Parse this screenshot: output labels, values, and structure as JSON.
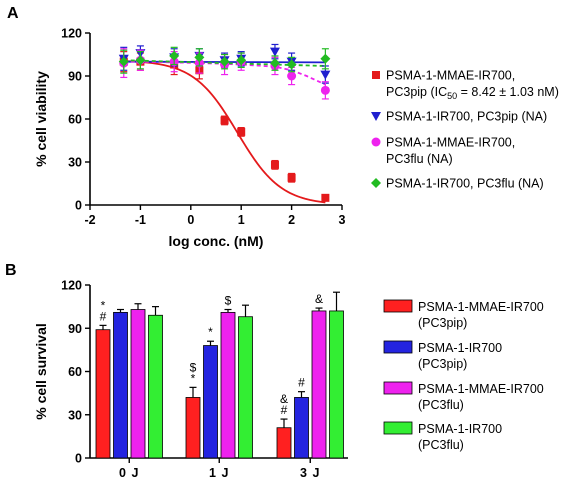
{
  "chart_data": [
    {
      "panel": "A",
      "type": "scatter",
      "xlabel": "log conc. (nM)",
      "ylabel": "% cell viability",
      "xlim": [
        -2,
        3
      ],
      "ylim": [
        0,
        120
      ],
      "xticks": [
        "-2",
        "-1",
        "0",
        "1",
        "2",
        "3"
      ],
      "yticks": [
        "0",
        "30",
        "60",
        "90",
        "120"
      ],
      "series": [
        {
          "name": "PSMA-1-MMAE-IR700, PC3pip (IC50 = 8.42 ± 1.03 nM)",
          "legend_line1": "PSMA-1-MMAE-IR700,",
          "legend_line2_pre": "PC3pip (IC",
          "legend_sub": "50",
          "legend_line2_post": " = 8.42 ± 1.03 nM)",
          "color": "#e41a1c",
          "marker": "square",
          "line": "solid",
          "x": [
            -1.33,
            -1.0,
            -0.33,
            0.17,
            0.67,
            1.0,
            1.67,
            2.0,
            2.67
          ],
          "y": [
            100,
            100,
            98,
            94,
            59,
            51,
            28,
            19,
            5
          ],
          "err": [
            7,
            6,
            7,
            6,
            3,
            3,
            3,
            3,
            2
          ],
          "fit": {
            "top": 101,
            "bottom": 0,
            "logIC50": 0.925,
            "hill": -1.0
          }
        },
        {
          "name": "PSMA-1-IR700, PC3pip (NA)",
          "color": "#1f1fcf",
          "marker": "triangle-down",
          "line": "solid",
          "x": [
            -1.33,
            -1.0,
            -0.33,
            0.17,
            0.67,
            1.0,
            1.67,
            2.0,
            2.67
          ],
          "y": [
            102,
            106,
            103,
            104,
            101,
            102,
            107,
            100,
            91
          ],
          "err": [
            8,
            5,
            6,
            5,
            5,
            5,
            5,
            6,
            6
          ],
          "fit_y": [
            100,
            99.5
          ]
        },
        {
          "name": "PSMA-1-MMAE-IR700, PC3flu (NA)",
          "color": "#ee22ee",
          "marker": "circle",
          "line": "dashed",
          "x": [
            -1.33,
            -1.0,
            -0.33,
            0.17,
            0.67,
            1.0,
            1.67,
            2.0,
            2.67
          ],
          "y": [
            99,
            101,
            100,
            99,
            98,
            100,
            97,
            90,
            80
          ],
          "err": [
            10,
            7,
            7,
            7,
            7,
            6,
            6,
            6,
            6
          ],
          "curve": [
            [
              -1.33,
              100
            ],
            [
              -1.0,
              100
            ],
            [
              -0.33,
              99.5
            ],
            [
              0.17,
              99
            ],
            [
              0.67,
              98.5
            ],
            [
              1.0,
              98
            ],
            [
              1.67,
              96.5
            ],
            [
              2.0,
              94
            ],
            [
              2.3,
              90
            ],
            [
              2.67,
              84
            ]
          ]
        },
        {
          "name": "PSMA-1-IR700, PC3flu (NA)",
          "color": "#22bb22",
          "marker": "diamond",
          "line": "dashed",
          "x": [
            -1.33,
            -1.0,
            -0.33,
            0.17,
            0.67,
            1.0,
            1.67,
            2.0,
            2.67
          ],
          "y": [
            100,
            101,
            104,
            103,
            100,
            101,
            99,
            98,
            102
          ],
          "err": [
            8,
            6,
            6,
            6,
            5,
            5,
            5,
            5,
            7
          ],
          "fit_y": [
            101,
            97
          ]
        }
      ]
    },
    {
      "panel": "B",
      "type": "bar",
      "ylabel": "% cell survival",
      "ylim": [
        0,
        120
      ],
      "yticks": [
        "0",
        "30",
        "60",
        "90",
        "120"
      ],
      "categories": [
        "0 J",
        "1 J",
        "3 J"
      ],
      "series": [
        {
          "name": "PSMA-1-MMAE-IR700 (PC3pip)",
          "line1": "PSMA-1-MMAE-IR700",
          "line2": "(PC3pip)",
          "color": "#ff2020",
          "values": [
            89,
            42,
            21
          ],
          "err": [
            3,
            7,
            6
          ]
        },
        {
          "name": "PSMA-1-IR700 (PC3pip)",
          "line1": "PSMA-1-IR700",
          "line2": "(PC3pip)",
          "color": "#2424e0",
          "values": [
            101,
            78,
            42
          ],
          "err": [
            2,
            3,
            4
          ]
        },
        {
          "name": "PSMA-1-MMAE-IR700 (PC3flu)",
          "line1": "PSMA-1-MMAE-IR700",
          "line2": "(PC3flu)",
          "color": "#ee22ee",
          "values": [
            103,
            101,
            102
          ],
          "err": [
            4,
            2,
            2
          ]
        },
        {
          "name": "PSMA-1-IR700 (PC3flu)",
          "line1": "PSMA-1-IR700",
          "line2": "(PC3flu)",
          "color": "#33ee33",
          "values": [
            99,
            98,
            102
          ],
          "err": [
            6,
            8,
            13
          ]
        }
      ],
      "annotations": [
        {
          "category": 0,
          "series": 0,
          "lines": [
            "*",
            "#"
          ]
        },
        {
          "category": 1,
          "series": 0,
          "lines": [
            "$",
            "*"
          ]
        },
        {
          "category": 1,
          "series": 1,
          "lines": [
            "*"
          ]
        },
        {
          "category": 1,
          "series": 2,
          "lines": [
            "$"
          ]
        },
        {
          "category": 2,
          "series": 0,
          "lines": [
            "&",
            "#"
          ]
        },
        {
          "category": 2,
          "series": 1,
          "lines": [
            "#"
          ]
        },
        {
          "category": 2,
          "series": 2,
          "lines": [
            "&"
          ]
        }
      ]
    }
  ]
}
